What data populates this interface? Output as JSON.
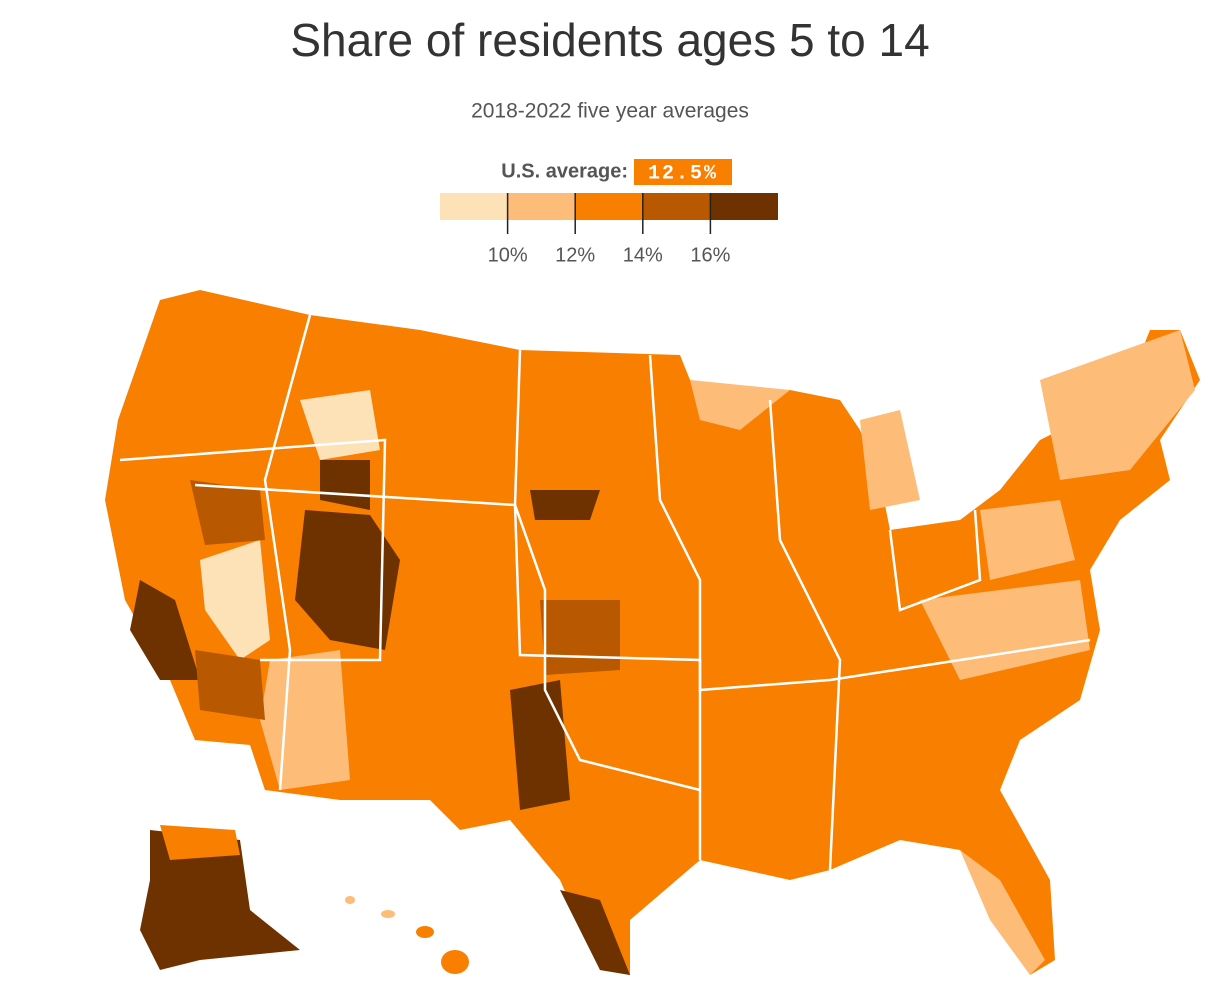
{
  "title": "Share of residents ages 5 to 14",
  "subtitle": "2018-2022 five year averages",
  "legend": {
    "average_label": "U.S. average:",
    "average": {
      "value": 12.5,
      "label": "12.5%"
    },
    "average_color": "#f97f00",
    "range": [
      8,
      18
    ],
    "ticks": [
      {
        "value": 10,
        "label": "10%"
      },
      {
        "value": 12,
        "label": "12%"
      },
      {
        "value": 14,
        "label": "14%"
      },
      {
        "value": 16,
        "label": "16%"
      }
    ],
    "colors": [
      "#fde1b7",
      "#fdbc78",
      "#f97f00",
      "#b85800",
      "#6e3200"
    ]
  }
}
